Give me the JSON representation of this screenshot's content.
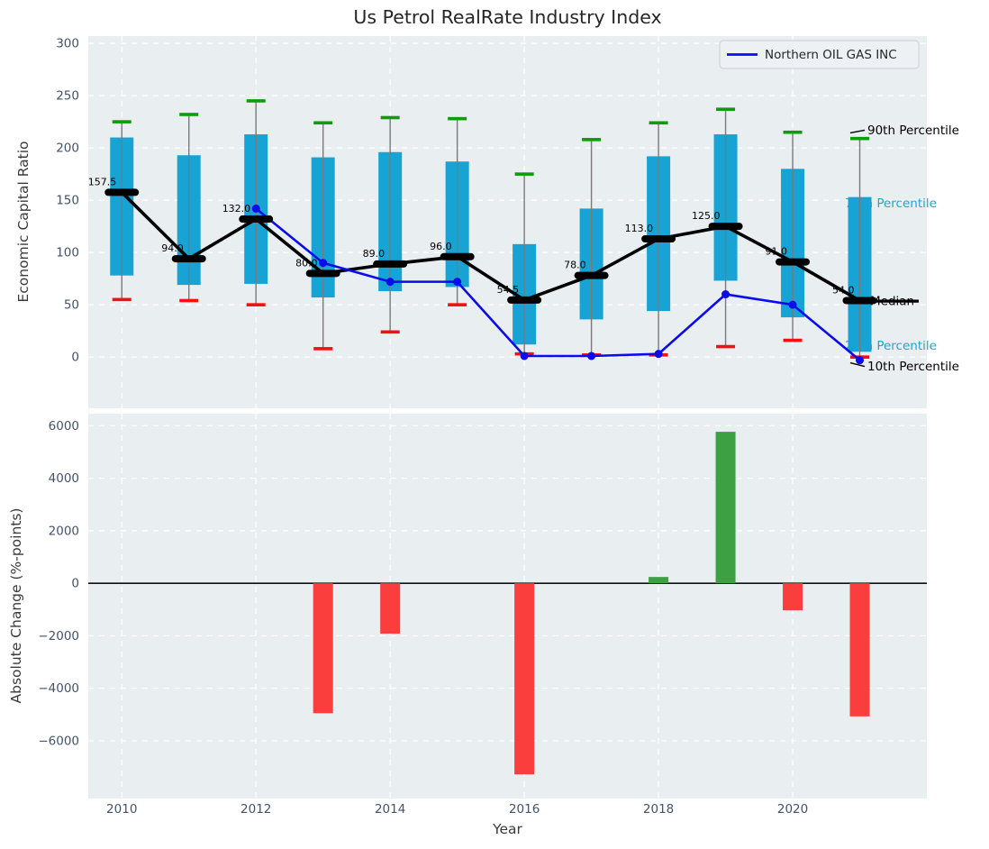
{
  "title": "Us Petrol RealRate Industry Index",
  "legend": {
    "label": "Northern OIL GAS INC"
  },
  "colors": {
    "axes_bg": "#e9eef0",
    "grid": "#ffffff",
    "tick_label": "#44536a",
    "title_color": "#262626",
    "box_fill": "#17a4d4",
    "whisker": "#7a7a7a",
    "cap_90th": "#0c9c0c",
    "cap_10th": "#f50f0f",
    "median_marker": "#000000",
    "company_line": "#0b0bee",
    "annotation_cyan": "#1ba6d4",
    "annotation_black": "#000000",
    "bar_positive": "#3da043",
    "bar_negative": "#fa3d3d",
    "zero_line": "#111111",
    "legend_bg": "#eef1f3",
    "legend_border": "#cfd4d9"
  },
  "chart_data": [
    {
      "type": "boxplot_with_line",
      "title": "Us Petrol RealRate Industry Index",
      "ylabel": "Economic Capital Ratio",
      "ylim": [
        -49,
        307
      ],
      "yticks": [
        300,
        250,
        200,
        150,
        100,
        50,
        0
      ],
      "xticks": [
        2010,
        2012,
        2014,
        2016,
        2018,
        2020
      ],
      "xlim": [
        2009.5,
        2022
      ],
      "grid": "white dashed",
      "legend_position": "upper right",
      "years": [
        2010,
        2011,
        2012,
        2013,
        2014,
        2015,
        2016,
        2017,
        2018,
        2019,
        2020,
        2021
      ],
      "series": {
        "p90": [
          225,
          232,
          245,
          224,
          229,
          228,
          175,
          208,
          224,
          237,
          215,
          209
        ],
        "p75": [
          210,
          193,
          213,
          191,
          196,
          187,
          108,
          142,
          192,
          213,
          180,
          153
        ],
        "median": [
          157.5,
          94.0,
          132.0,
          80.0,
          89.0,
          96.0,
          54.5,
          78.0,
          113.0,
          125.0,
          91.0,
          54.0
        ],
        "p25": [
          78,
          69,
          70,
          57,
          63,
          67,
          12,
          36,
          44,
          73,
          38,
          5
        ],
        "p10": [
          55,
          54,
          50,
          8,
          24,
          50,
          3,
          2,
          2,
          10,
          16,
          0
        ],
        "company": [
          null,
          null,
          142,
          90,
          72,
          72,
          1,
          1,
          3,
          60,
          50,
          -3
        ]
      },
      "company_name": "Northern OIL GAS INC",
      "median_labels": [
        "157.5",
        "94.0",
        "132.0",
        "80.0",
        "89.0",
        "96.0",
        "54.5",
        "78.0",
        "113.0",
        "125.0",
        "91.0",
        "54.0"
      ],
      "annotations": [
        {
          "text": "90th Percentile",
          "color": "black",
          "value": 217,
          "kind": "leader"
        },
        {
          "text": "75th Percentile",
          "color": "cyan",
          "value": 147,
          "kind": "behind-box"
        },
        {
          "text": "Median",
          "color": "black",
          "value": 53.5,
          "kind": "strike"
        },
        {
          "text": "25th Percentile",
          "color": "cyan",
          "value": 11,
          "kind": "behind-box"
        },
        {
          "text": "10th Percentile",
          "color": "black",
          "value": -9,
          "kind": "leader"
        }
      ]
    },
    {
      "type": "bar",
      "ylabel": "Absolute Change (%-points)",
      "xlabel": "Year",
      "ylim": [
        -8200,
        6460
      ],
      "yticks": [
        6000,
        4000,
        2000,
        0,
        -2000,
        -4000,
        -6000
      ],
      "xticks": [
        2010,
        2012,
        2014,
        2016,
        2018,
        2020
      ],
      "xlim": [
        2009.5,
        2022
      ],
      "years": [
        2010,
        2011,
        2012,
        2013,
        2014,
        2015,
        2016,
        2017,
        2018,
        2019,
        2020,
        2021
      ],
      "values": [
        0,
        0,
        0,
        -4950,
        -1920,
        0,
        -7280,
        0,
        240,
        5770,
        -1030,
        -5070
      ]
    }
  ]
}
